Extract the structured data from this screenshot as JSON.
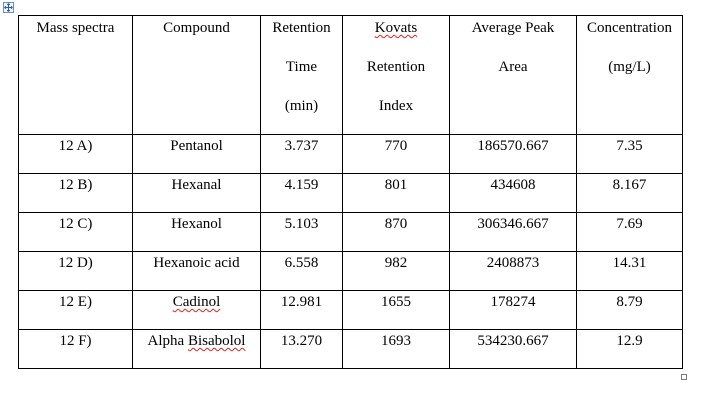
{
  "table": {
    "headers": [
      {
        "key": "mass_spectra",
        "lines": [
          "Mass spectra"
        ]
      },
      {
        "key": "compound",
        "lines": [
          "Compound"
        ]
      },
      {
        "key": "retention_time",
        "lines": [
          "Retention",
          "Time",
          "(min)"
        ]
      },
      {
        "key": "kovats_index",
        "lines": [
          "Kovats",
          "Retention",
          "Index"
        ]
      },
      {
        "key": "average_peak_area",
        "lines": [
          "Average Peak",
          "Area"
        ]
      },
      {
        "key": "concentration",
        "lines": [
          "Concentration",
          "(mg/L)"
        ]
      }
    ],
    "rows": [
      {
        "mass_spectra": "12 A)",
        "compound": "Pentanol",
        "retention_time": "3.737",
        "kovats_index": "770",
        "average_peak_area": "186570.667",
        "concentration": "7.35"
      },
      {
        "mass_spectra": "12 B)",
        "compound": "Hexanal",
        "retention_time": "4.159",
        "kovats_index": "801",
        "average_peak_area": "434608",
        "concentration": "8.167"
      },
      {
        "mass_spectra": "12 C)",
        "compound": "Hexanol",
        "retention_time": "5.103",
        "kovats_index": "870",
        "average_peak_area": "306346.667",
        "concentration": "7.69"
      },
      {
        "mass_spectra": "12 D)",
        "compound": "Hexanoic acid",
        "retention_time": "6.558",
        "kovats_index": "982",
        "average_peak_area": "2408873",
        "concentration": "14.31"
      },
      {
        "mass_spectra": "12 E)",
        "compound": "Cadinol",
        "retention_time": "12.981",
        "kovats_index": "1655",
        "average_peak_area": "178274",
        "concentration": "8.79"
      },
      {
        "mass_spectra": "12 F)",
        "compound": "Alpha Bisabolol",
        "retention_time": "13.270",
        "kovats_index": "1693",
        "average_peak_area": "534230.667",
        "concentration": "12.9"
      }
    ]
  },
  "icons": {
    "move_handle": "move-arrows-icon",
    "resize_handle": "resize-square-icon",
    "spellcheck_color": "#e02020"
  }
}
